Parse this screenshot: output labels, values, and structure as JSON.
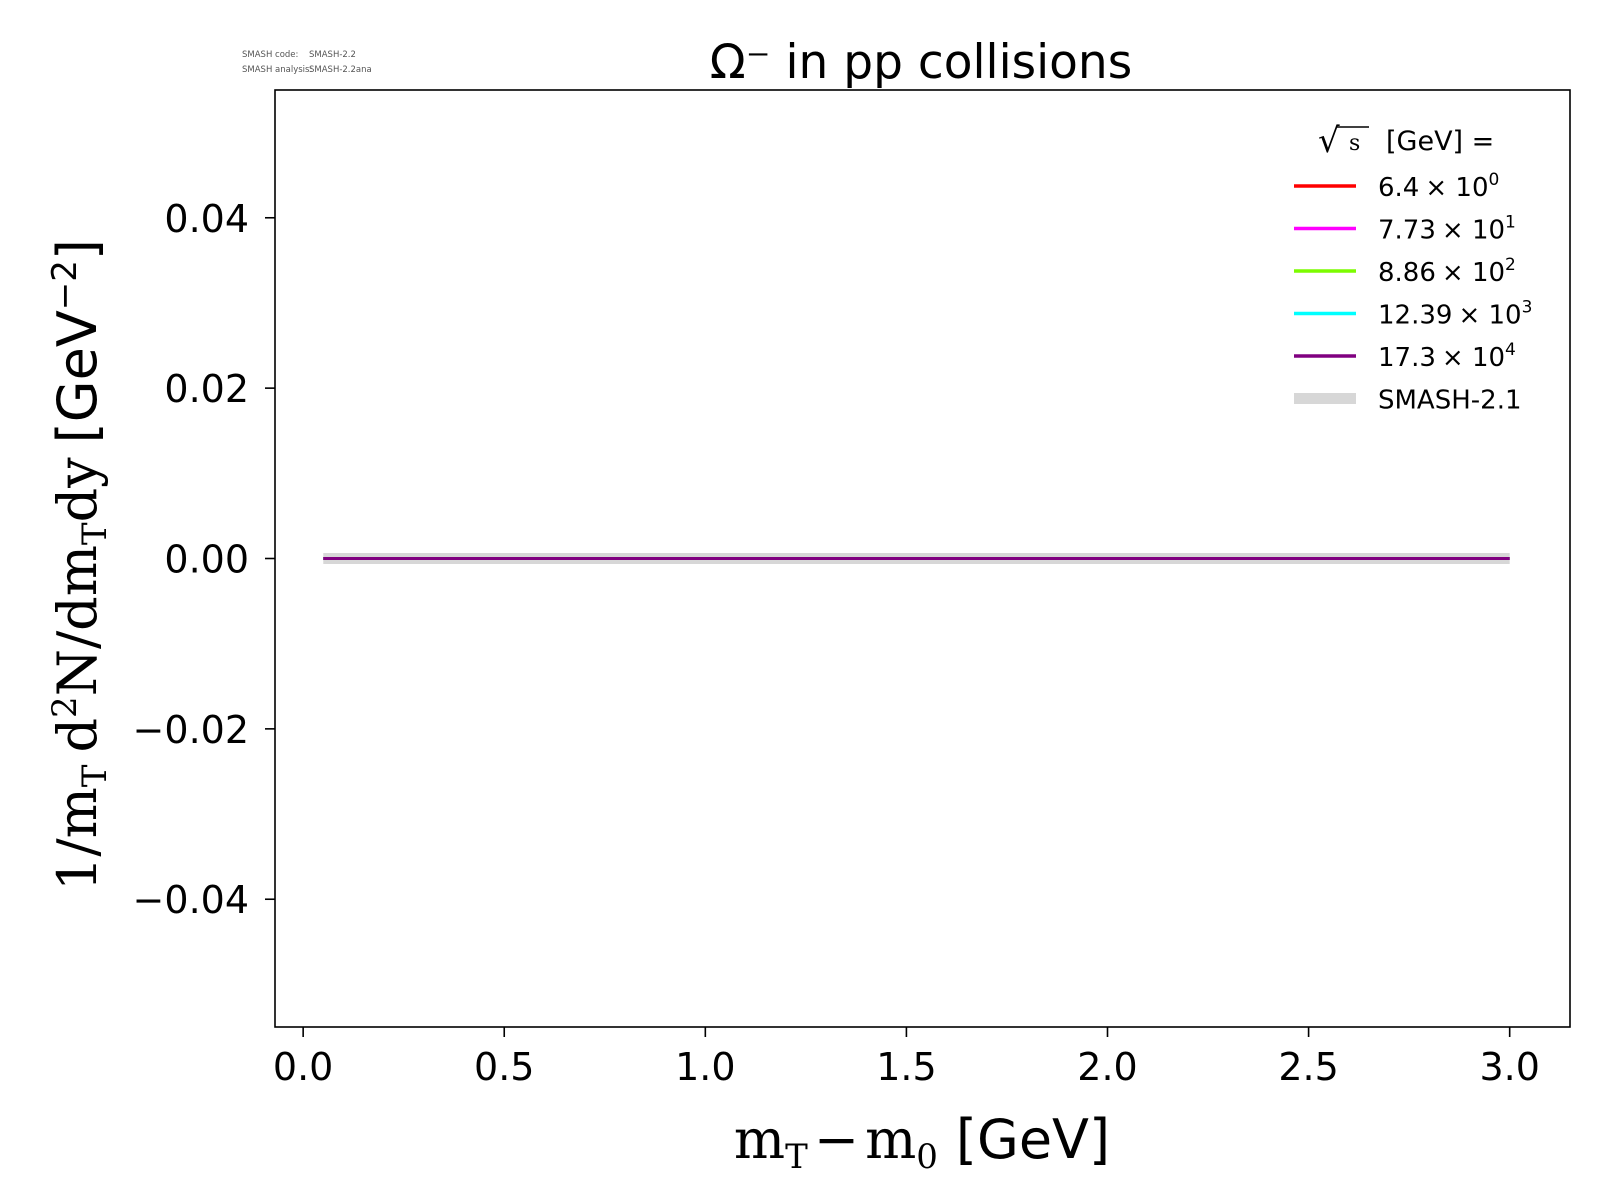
{
  "meta": {
    "code_label": "SMASH code:",
    "code_value": "SMASH-2.2",
    "analysis_label": "SMASH analysis:",
    "analysis_value": "SMASH-2.2ana"
  },
  "chart_data": {
    "type": "line",
    "title": "Ω⁻ in pp collisions",
    "xlabel": {
      "m": "m",
      "T": "T",
      "minus": "−",
      "m0": "m",
      "zero": "0",
      "unit": "[GeV]"
    },
    "ylabel": {
      "prefix": "1/m",
      "T1": "T",
      "d": "d",
      "sup2": "2",
      "N_dm": "N/dm",
      "T2": "T",
      "dy": "dy",
      "unit_open": "[GeV",
      "unit_exp": "−2",
      "unit_close": "]"
    },
    "xlim": [
      -0.07,
      3.15
    ],
    "ylim": [
      -0.055,
      0.055
    ],
    "xticks": [
      {
        "value": 0.0,
        "label": "0.0"
      },
      {
        "value": 0.5,
        "label": "0.5"
      },
      {
        "value": 1.0,
        "label": "1.0"
      },
      {
        "value": 1.5,
        "label": "1.5"
      },
      {
        "value": 2.0,
        "label": "2.0"
      },
      {
        "value": 2.5,
        "label": "2.5"
      },
      {
        "value": 3.0,
        "label": "3.0"
      }
    ],
    "yticks": [
      {
        "value": 0.04,
        "label": "0.04"
      },
      {
        "value": 0.02,
        "label": "0.02"
      },
      {
        "value": 0.0,
        "label": "0.00"
      },
      {
        "value": -0.02,
        "label": "−0.02"
      },
      {
        "value": -0.04,
        "label": "−0.04"
      }
    ],
    "grid": false,
    "legend": {
      "placement": "top-right",
      "title_sqrt_symbol": "√",
      "title_s": "s",
      "title_rest": "[GeV] ="
    },
    "series": [
      {
        "name_mantissa": "6.4",
        "name_base": "× 10",
        "name_exp": "0",
        "color": "#ff0000",
        "x": [
          0.05,
          3.0
        ],
        "y": [
          0.0,
          0.0
        ]
      },
      {
        "name_mantissa": "7.73",
        "name_base": "× 10",
        "name_exp": "1",
        "color": "#ff00ff",
        "x": [
          0.05,
          3.0
        ],
        "y": [
          0.0,
          0.0
        ]
      },
      {
        "name_mantissa": "8.86",
        "name_base": "× 10",
        "name_exp": "2",
        "color": "#7cfc00",
        "x": [
          0.05,
          3.0
        ],
        "y": [
          0.0,
          0.0
        ]
      },
      {
        "name_mantissa": "12.39",
        "name_base": "× 10",
        "name_exp": "3",
        "color": "#00ffff",
        "x": [
          0.05,
          3.0
        ],
        "y": [
          0.0,
          0.0
        ]
      },
      {
        "name_mantissa": "17.3",
        "name_base": "× 10",
        "name_exp": "4",
        "color": "#800080",
        "x": [
          0.05,
          3.0
        ],
        "y": [
          0.0,
          0.0
        ]
      }
    ],
    "reference": {
      "name": "SMASH-2.1",
      "color": "#d3d3d3",
      "x": [
        0.05,
        3.0
      ],
      "y": [
        0.0,
        0.0
      ]
    }
  }
}
